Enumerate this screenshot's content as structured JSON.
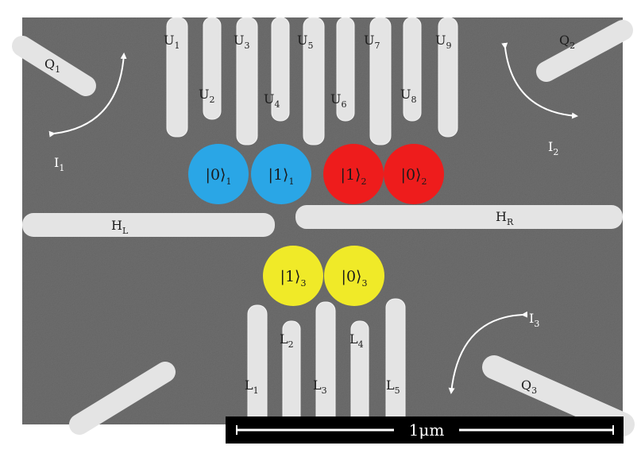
{
  "figure": {
    "colors": {
      "substrate": "#6e6e6e",
      "gate": "#e4e4e4",
      "label": "#ffffff",
      "dot_blue": "#2aa6e6",
      "dot_red": "#ee1c1c",
      "dot_yellow": "#f0ea28",
      "scalebar_bg": "#000000",
      "scalebar_fg": "#ffffff"
    },
    "labels": {
      "Q1": {
        "base": "Q",
        "sub": "1"
      },
      "Q2": {
        "base": "Q",
        "sub": "2"
      },
      "Q3": {
        "base": "Q",
        "sub": "3"
      },
      "I1": {
        "base": "I",
        "sub": "1"
      },
      "I2": {
        "base": "I",
        "sub": "2"
      },
      "I3": {
        "base": "I",
        "sub": "3"
      },
      "HL": {
        "base": "H",
        "sub": "L"
      },
      "HR": {
        "base": "H",
        "sub": "R"
      },
      "U1": {
        "base": "U",
        "sub": "1"
      },
      "U2": {
        "base": "U",
        "sub": "2"
      },
      "U3": {
        "base": "U",
        "sub": "3"
      },
      "U4": {
        "base": "U",
        "sub": "4"
      },
      "U5": {
        "base": "U",
        "sub": "5"
      },
      "U6": {
        "base": "U",
        "sub": "6"
      },
      "U7": {
        "base": "U",
        "sub": "7"
      },
      "U8": {
        "base": "U",
        "sub": "8"
      },
      "U9": {
        "base": "U",
        "sub": "9"
      },
      "L1": {
        "base": "L",
        "sub": "1"
      },
      "L2": {
        "base": "L",
        "sub": "2"
      },
      "L3": {
        "base": "L",
        "sub": "3"
      },
      "L4": {
        "base": "L",
        "sub": "4"
      },
      "L5": {
        "base": "L",
        "sub": "5"
      }
    },
    "dots": {
      "d01": {
        "state": "0",
        "sub": "1",
        "color": "blue"
      },
      "d11": {
        "state": "1",
        "sub": "1",
        "color": "blue"
      },
      "d12": {
        "state": "1",
        "sub": "2",
        "color": "red"
      },
      "d02": {
        "state": "0",
        "sub": "2",
        "color": "red"
      },
      "d13": {
        "state": "1",
        "sub": "3",
        "color": "yellow"
      },
      "d03": {
        "state": "0",
        "sub": "3",
        "color": "yellow"
      }
    },
    "scalebar": {
      "text": "1μm"
    }
  }
}
